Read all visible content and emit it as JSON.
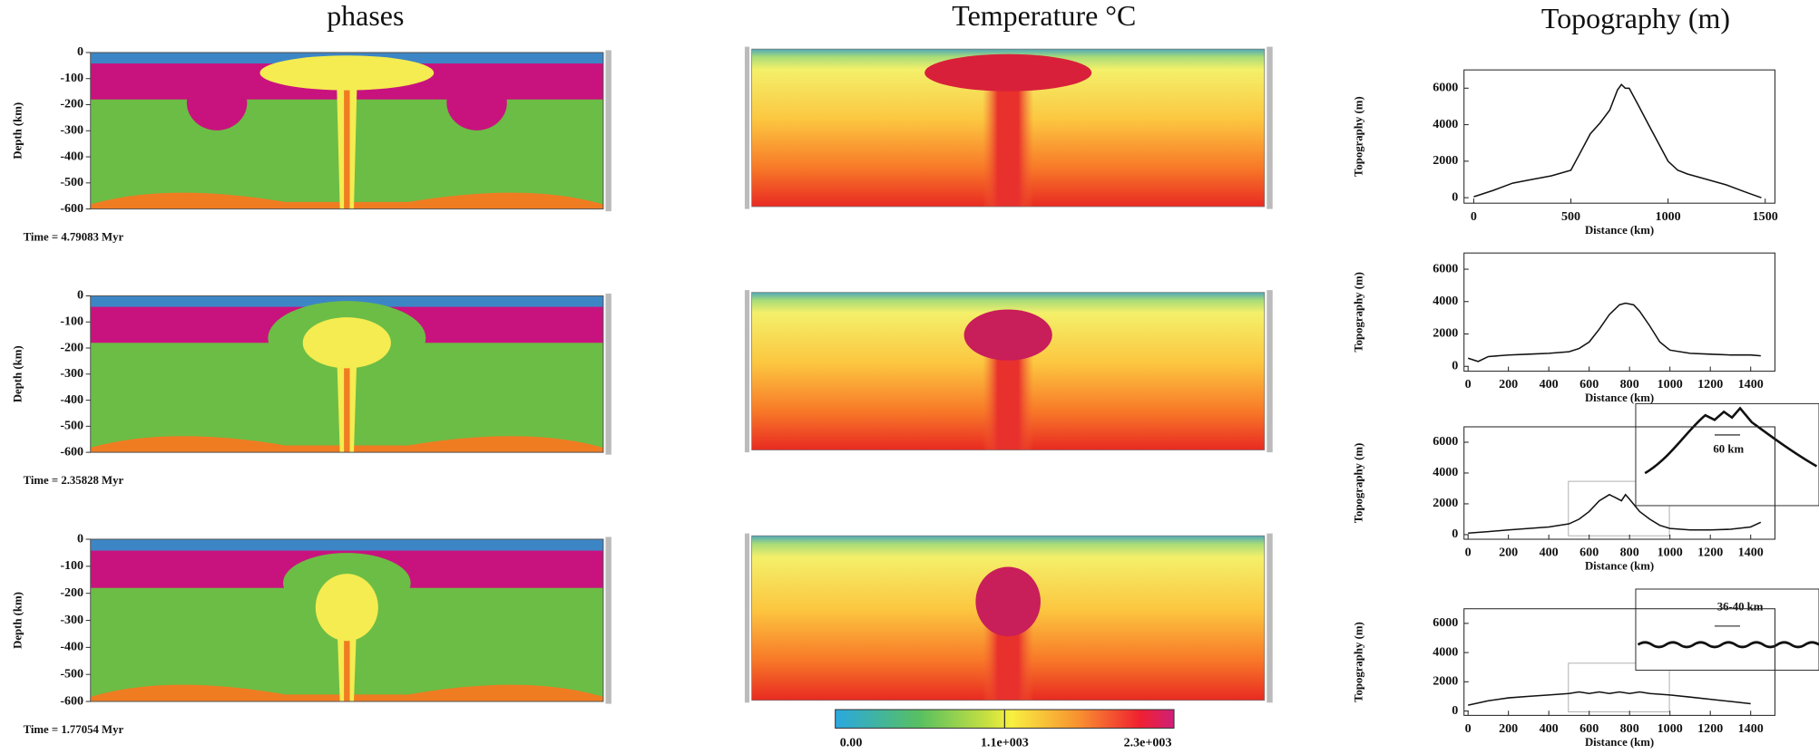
{
  "columns": [
    "phases",
    "Temperature °C",
    "Topography (m)"
  ],
  "phase_panels": [
    {
      "ylabel": "Depth (km)",
      "ylim": [
        -600,
        0
      ],
      "yticks": [
        0,
        -100,
        -200,
        -300,
        -400,
        -500,
        -600
      ],
      "time_label": "Time =  4.79083 Myr"
    },
    {
      "ylabel": "Depth (km)",
      "ylim": [
        -600,
        0
      ],
      "yticks": [
        0,
        -100,
        -200,
        -300,
        -400,
        -500,
        -600
      ],
      "time_label": "Time =  2.35828 Myr"
    },
    {
      "ylabel": "Depth (km)",
      "ylim": [
        -600,
        0
      ],
      "yticks": [
        0,
        -100,
        -200,
        -300,
        -400,
        -500,
        -600
      ],
      "time_label": "Time =  1.77054 Myr"
    }
  ],
  "colorbar": {
    "labels": [
      "0.00",
      "1.1e+003",
      "2.3e+003"
    ]
  },
  "chart_data": [
    {
      "type": "line",
      "ylabel": "Topography (m)",
      "xlabel": "Distance (km)",
      "color": "#111111",
      "x": [
        0,
        100,
        200,
        300,
        400,
        500,
        550,
        600,
        650,
        700,
        740,
        760,
        780,
        800,
        850,
        900,
        950,
        1000,
        1050,
        1100,
        1200,
        1300,
        1400,
        1480
      ],
      "values": [
        50,
        400,
        800,
        1000,
        1200,
        1500,
        2500,
        3500,
        4100,
        4800,
        5900,
        6200,
        6000,
        6000,
        5000,
        4000,
        3000,
        2000,
        1500,
        1300,
        1000,
        700,
        300,
        0
      ],
      "xlim": [
        -50,
        1550
      ],
      "ylim": [
        -300,
        7000
      ],
      "xticks": [
        0,
        500,
        1000,
        1500
      ],
      "yticks": [
        0,
        2000,
        4000,
        6000
      ]
    },
    {
      "type": "line",
      "ylabel": "Topography (m)",
      "xlabel": "Distance (km)",
      "color": "#111111",
      "x": [
        0,
        50,
        100,
        200,
        300,
        400,
        500,
        550,
        600,
        650,
        700,
        750,
        780,
        820,
        850,
        900,
        950,
        1000,
        1100,
        1200,
        1300,
        1400,
        1450
      ],
      "values": [
        500,
        300,
        600,
        700,
        750,
        800,
        900,
        1100,
        1500,
        2300,
        3200,
        3800,
        3900,
        3800,
        3400,
        2500,
        1500,
        1000,
        800,
        750,
        700,
        700,
        650
      ],
      "xlim": [
        -20,
        1520
      ],
      "ylim": [
        -300,
        7000
      ],
      "xticks": [
        0,
        200,
        400,
        600,
        800,
        1000,
        1200,
        1400
      ],
      "yticks": [
        0,
        2000,
        4000,
        6000
      ]
    },
    {
      "type": "line",
      "ylabel": "Topography (m)",
      "xlabel": "Distance (km)",
      "annotation": "60 km",
      "color": "#111111",
      "x": [
        0,
        100,
        200,
        300,
        400,
        500,
        550,
        600,
        650,
        700,
        730,
        760,
        780,
        800,
        850,
        900,
        950,
        1000,
        1100,
        1200,
        1300,
        1400,
        1450
      ],
      "values": [
        100,
        200,
        300,
        400,
        500,
        700,
        1000,
        1500,
        2200,
        2600,
        2400,
        2200,
        2600,
        2300,
        1500,
        1000,
        600,
        400,
        300,
        300,
        350,
        500,
        800
      ],
      "xlim": [
        -20,
        1520
      ],
      "ylim": [
        -300,
        7000
      ],
      "xticks": [
        0,
        200,
        400,
        600,
        800,
        1000,
        1200,
        1400
      ],
      "yticks": [
        0,
        2000,
        4000,
        6000
      ]
    },
    {
      "type": "line",
      "ylabel": "Topography (m)",
      "xlabel": "Distance (km)",
      "annotation": "36-40 km",
      "color": "#111111",
      "x": [
        0,
        100,
        200,
        300,
        400,
        500,
        550,
        600,
        650,
        700,
        750,
        800,
        850,
        900,
        1000,
        1100,
        1200,
        1300,
        1400
      ],
      "values": [
        400,
        700,
        900,
        1000,
        1100,
        1200,
        1300,
        1200,
        1300,
        1200,
        1300,
        1200,
        1300,
        1200,
        1100,
        950,
        800,
        650,
        500
      ],
      "xlim": [
        -20,
        1520
      ],
      "ylim": [
        -300,
        7000
      ],
      "xticks": [
        0,
        200,
        400,
        600,
        800,
        1000,
        1200,
        1400
      ],
      "yticks": [
        0,
        2000,
        4000,
        6000
      ]
    }
  ]
}
